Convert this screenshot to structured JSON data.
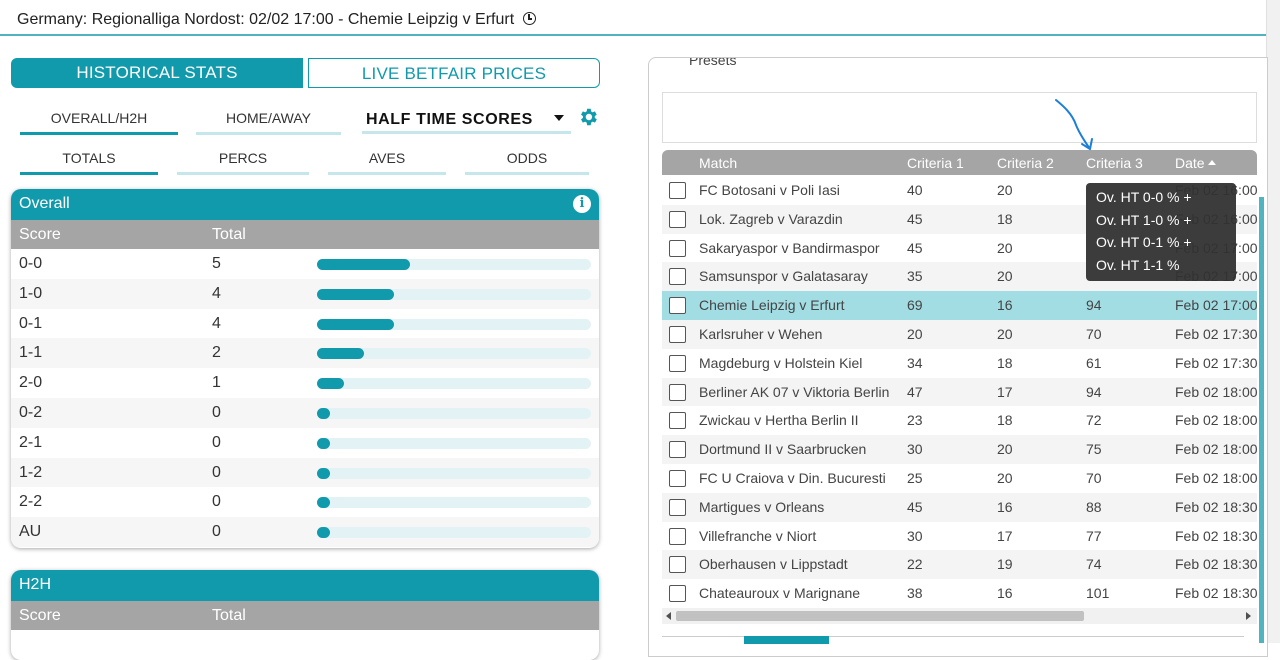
{
  "header": {
    "title": "Germany: Regionalliga Nordost: 02/02 17:00 - Chemie Leipzig v Erfurt",
    "clock_icon": "clock-icon"
  },
  "main_tabs": [
    {
      "label": "HISTORICAL STATS",
      "active": true
    },
    {
      "label": "LIVE BETFAIR PRICES",
      "active": false
    }
  ],
  "view_tabs": [
    {
      "label": "OVERALL/H2H",
      "active": true
    },
    {
      "label": "HOME/AWAY",
      "active": false
    }
  ],
  "stat_dropdown": {
    "value": "HALF TIME SCORES"
  },
  "metric_tabs": [
    {
      "label": "TOTALS",
      "active": true
    },
    {
      "label": "PERCS",
      "active": false
    },
    {
      "label": "AVES",
      "active": false
    },
    {
      "label": "ODDS",
      "active": false
    }
  ],
  "overall": {
    "title": "Overall",
    "columns": [
      "Score",
      "Total"
    ],
    "rows": [
      {
        "score": "0-0",
        "total": "5",
        "fraction": 0.34
      },
      {
        "score": "1-0",
        "total": "4",
        "fraction": 0.28
      },
      {
        "score": "0-1",
        "total": "4",
        "fraction": 0.28
      },
      {
        "score": "1-1",
        "total": "2",
        "fraction": 0.17
      },
      {
        "score": "2-0",
        "total": "1",
        "fraction": 0.1
      },
      {
        "score": "0-2",
        "total": "0",
        "fraction": 0.0
      },
      {
        "score": "2-1",
        "total": "0",
        "fraction": 0.0
      },
      {
        "score": "1-2",
        "total": "0",
        "fraction": 0.0
      },
      {
        "score": "2-2",
        "total": "0",
        "fraction": 0.0
      },
      {
        "score": "AU",
        "total": "0",
        "fraction": 0.0
      }
    ]
  },
  "h2h": {
    "title": "H2H",
    "columns": [
      "Score",
      "Total"
    ]
  },
  "presets": {
    "label": "Presets"
  },
  "match_table": {
    "columns": [
      "Match",
      "Criteria 1",
      "Criteria 2",
      "Criteria 3",
      "Date"
    ],
    "rows": [
      {
        "match": "FC Botosani v Poli Iasi",
        "c1": "40",
        "c2": "20",
        "c3": "",
        "date": "Feb 02 16:00",
        "highlight": false
      },
      {
        "match": "Lok. Zagreb v Varazdin",
        "c1": "45",
        "c2": "18",
        "c3": "",
        "date": "Feb 02 16:00",
        "highlight": false
      },
      {
        "match": "Sakaryaspor v Bandirmaspor",
        "c1": "45",
        "c2": "20",
        "c3": "",
        "date": "Feb 02 17:00",
        "highlight": false
      },
      {
        "match": "Samsunspor v Galatasaray",
        "c1": "35",
        "c2": "20",
        "c3": "",
        "date": "Feb 02 17:00",
        "highlight": false
      },
      {
        "match": "Chemie Leipzig v Erfurt",
        "c1": "69",
        "c2": "16",
        "c3": "94",
        "date": "Feb 02 17:00",
        "highlight": true
      },
      {
        "match": "Karlsruher v Wehen",
        "c1": "20",
        "c2": "20",
        "c3": "70",
        "date": "Feb 02 17:30",
        "highlight": false
      },
      {
        "match": "Magdeburg v Holstein Kiel",
        "c1": "34",
        "c2": "18",
        "c3": "61",
        "date": "Feb 02 17:30",
        "highlight": false
      },
      {
        "match": "Berliner AK 07 v Viktoria Berlin",
        "c1": "47",
        "c2": "17",
        "c3": "94",
        "date": "Feb 02 18:00",
        "highlight": false
      },
      {
        "match": "Zwickau v Hertha Berlin II",
        "c1": "23",
        "c2": "18",
        "c3": "72",
        "date": "Feb 02 18:00",
        "highlight": false
      },
      {
        "match": "Dortmund II v Saarbrucken",
        "c1": "30",
        "c2": "20",
        "c3": "75",
        "date": "Feb 02 18:00",
        "highlight": false
      },
      {
        "match": "FC U Craiova v Din. Bucuresti",
        "c1": "25",
        "c2": "20",
        "c3": "70",
        "date": "Feb 02 18:00",
        "highlight": false
      },
      {
        "match": "Martigues v Orleans",
        "c1": "45",
        "c2": "16",
        "c3": "88",
        "date": "Feb 02 18:30",
        "highlight": false
      },
      {
        "match": "Villefranche v Niort",
        "c1": "30",
        "c2": "17",
        "c3": "77",
        "date": "Feb 02 18:30",
        "highlight": false
      },
      {
        "match": "Oberhausen v Lippstadt",
        "c1": "22",
        "c2": "19",
        "c3": "74",
        "date": "Feb 02 18:30",
        "highlight": false
      },
      {
        "match": "Chateauroux v Marignane",
        "c1": "38",
        "c2": "16",
        "c3": "101",
        "date": "Feb 02 18:30",
        "highlight": false
      }
    ]
  },
  "tooltip": {
    "lines": [
      "Ov. HT 0-0 % +",
      "Ov. HT 1-0 % +",
      "Ov. HT 0-1 % +",
      "Ov. HT 1-1 %"
    ]
  },
  "colors": {
    "accent": "#119aab",
    "header_gray": "#a5a5a5",
    "highlight_row": "#a2dde3",
    "annotation": "#1e7fd8"
  }
}
